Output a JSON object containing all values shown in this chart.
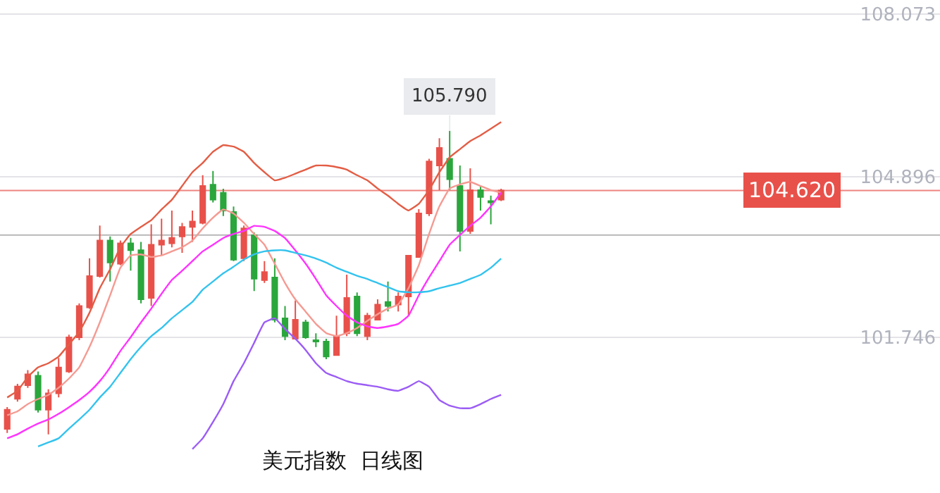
{
  "chart_data": {
    "type": "candlestick",
    "title": "美元指数  日线图",
    "categories": [
      null,
      null,
      null,
      null,
      null,
      null,
      null,
      null,
      null,
      null,
      null,
      null,
      null,
      null,
      null,
      null,
      null,
      null,
      null,
      null,
      null,
      null,
      null,
      null,
      null,
      null,
      null,
      null,
      null,
      null,
      null,
      null,
      null,
      null,
      null,
      null,
      null,
      null,
      null,
      null,
      null,
      null,
      null,
      null,
      null,
      null,
      null,
      null,
      null
    ],
    "ohlc": [
      [
        99.956,
        100.383,
        99.876,
        100.33
      ],
      [
        100.543,
        100.837,
        100.49,
        100.784
      ],
      [
        100.81,
        101.104,
        100.757,
        101.024
      ],
      [
        100.997,
        101.077,
        100.276,
        100.33
      ],
      [
        100.33,
        100.73,
        99.849,
        100.65
      ],
      [
        100.65,
        101.344,
        100.57,
        101.157
      ],
      [
        101.077,
        101.798,
        101.051,
        101.745
      ],
      [
        101.745,
        102.412,
        101.691,
        102.359
      ],
      [
        102.332,
        103.293,
        102.306,
        102.946
      ],
      [
        102.946,
        103.934,
        102.92,
        103.641
      ],
      [
        103.641,
        103.721,
        102.84,
        103.213
      ],
      [
        103.187,
        103.641,
        103.16,
        103.587
      ],
      [
        103.587,
        103.694,
        103.053,
        103.454
      ],
      [
        103.454,
        103.614,
        102.412,
        102.492
      ],
      [
        102.519,
        103.961,
        102.359,
        103.56
      ],
      [
        103.56,
        104.068,
        103.347,
        103.641
      ],
      [
        103.587,
        104.228,
        103.507,
        103.694
      ],
      [
        103.721,
        103.988,
        103.4,
        103.908
      ],
      [
        103.908,
        104.228,
        103.614,
        104.014
      ],
      [
        103.988,
        104.922,
        103.961,
        104.709
      ],
      [
        104.735,
        105.002,
        104.388,
        104.442
      ],
      [
        104.575,
        104.655,
        104.121,
        104.228
      ],
      [
        104.201,
        104.308,
        103.24,
        103.267
      ],
      [
        103.294,
        103.934,
        103.24,
        103.881
      ],
      [
        103.747,
        103.801,
        102.653,
        102.893
      ],
      [
        102.866,
        103.24,
        102.813,
        103.026
      ],
      [
        102.92,
        103.293,
        102.039,
        102.092
      ],
      [
        102.119,
        102.359,
        101.691,
        101.771
      ],
      [
        101.718,
        102.466,
        101.718,
        102.092
      ],
      [
        102.039,
        102.092,
        101.718,
        101.745
      ],
      [
        101.691,
        101.825,
        101.558,
        101.665
      ],
      [
        101.665,
        101.718,
        101.318,
        101.371
      ],
      [
        101.398,
        102.172,
        101.398,
        101.771
      ],
      [
        101.825,
        102.973,
        101.771,
        102.519
      ],
      [
        102.546,
        102.626,
        101.771,
        101.825
      ],
      [
        101.771,
        102.226,
        101.691,
        102.172
      ],
      [
        102.092,
        102.492,
        102.092,
        102.386
      ],
      [
        102.439,
        102.84,
        102.252,
        102.359
      ],
      [
        102.386,
        102.626,
        102.252,
        102.546
      ],
      [
        102.546,
        103.347,
        102.172,
        103.347
      ],
      [
        103.32,
        104.255,
        103.32,
        104.174
      ],
      [
        104.174,
        105.243,
        104.121,
        105.189
      ],
      [
        105.109,
        105.643,
        104.628,
        105.456
      ],
      [
        105.243,
        105.79,
        104.628,
        104.842
      ],
      [
        104.709,
        105.109,
        103.427,
        103.828
      ],
      [
        103.828,
        105.056,
        103.774,
        104.628
      ],
      [
        104.628,
        104.709,
        104.228,
        104.495
      ],
      [
        104.415,
        104.522,
        103.961,
        104.388
      ],
      [
        104.442,
        104.655,
        104.415,
        104.62
      ]
    ],
    "colors": [
      "#e8514a",
      "#e8514a",
      "#e8514a",
      "#2aa63c",
      "#e8514a",
      "#e8514a",
      "#e8514a",
      "#e8514a",
      "#e8514a",
      "#e8514a",
      "#2aa63c",
      "#e8514a",
      "#2aa63c",
      "#2aa63c",
      "#e8514a",
      "#e8514a",
      "#e8514a",
      "#e8514a",
      "#e8514a",
      "#e8514a",
      "#2aa63c",
      "#2aa63c",
      "#2aa63c",
      "#e8514a",
      "#2aa63c",
      "#e8514a",
      "#2aa63c",
      "#2aa63c",
      "#e8514a",
      "#2aa63c",
      "#2aa63c",
      "#2aa63c",
      "#e8514a",
      "#e8514a",
      "#2aa63c",
      "#e8514a",
      "#e8514a",
      "#2aa63c",
      "#e8514a",
      "#e8514a",
      "#e8514a",
      "#e8514a",
      "#e8514a",
      "#2aa63c",
      "#2aa63c",
      "#e8514a",
      "#2aa63c",
      "#2aa63c",
      "#e8514a"
    ],
    "series": [
      {
        "type": "line",
        "color": "#e35d45",
        "values": [
          100.57,
          100.7,
          100.97,
          101.16,
          101.24,
          101.37,
          101.61,
          101.85,
          102.23,
          102.71,
          103.08,
          103.51,
          103.77,
          103.91,
          104.04,
          104.25,
          104.44,
          104.71,
          104.98,
          105.16,
          105.38,
          105.51,
          105.48,
          105.38,
          105.16,
          104.98,
          104.82,
          104.87,
          104.95,
          105.03,
          105.11,
          105.11,
          105.08,
          105.03,
          104.92,
          104.82,
          104.66,
          104.52,
          104.36,
          104.23,
          104.36,
          104.63,
          104.98,
          105.27,
          105.43,
          105.59,
          105.7,
          105.83,
          105.96
        ]
      },
      {
        "type": "line",
        "color": "#f59a92",
        "values": [
          100.22,
          100.3,
          100.44,
          100.54,
          100.62,
          100.76,
          100.94,
          101.16,
          101.56,
          102.04,
          102.57,
          103.11,
          103.35,
          103.37,
          103.32,
          103.35,
          103.43,
          103.51,
          103.64,
          103.88,
          104.09,
          104.25,
          104.17,
          103.99,
          103.77,
          103.56,
          103.19,
          102.81,
          102.49,
          102.25,
          102.01,
          101.83,
          101.77,
          101.83,
          101.93,
          102.07,
          102.2,
          102.31,
          102.39,
          102.71,
          103.16,
          103.77,
          104.31,
          104.66,
          104.74,
          104.79,
          104.71,
          104.63,
          104.58
        ]
      },
      {
        "type": "line",
        "color": "#ff33ff",
        "values": [
          99.77,
          99.85,
          99.96,
          100.06,
          100.14,
          100.25,
          100.38,
          100.52,
          100.68,
          100.89,
          101.16,
          101.48,
          101.75,
          102.04,
          102.31,
          102.6,
          102.87,
          103.05,
          103.24,
          103.43,
          103.56,
          103.69,
          103.77,
          103.83,
          103.93,
          103.91,
          103.83,
          103.69,
          103.45,
          103.19,
          102.89,
          102.57,
          102.36,
          102.17,
          102.04,
          101.96,
          101.93,
          101.96,
          102.01,
          102.17,
          102.57,
          102.92,
          103.24,
          103.56,
          103.75,
          103.93,
          104.09,
          104.31,
          104.58
        ]
      },
      {
        "type": "line",
        "color": "#33c3ee",
        "values": [
          null,
          null,
          null,
          99.61,
          99.69,
          99.77,
          99.96,
          100.14,
          100.33,
          100.57,
          100.78,
          101.05,
          101.32,
          101.56,
          101.77,
          101.93,
          102.12,
          102.28,
          102.44,
          102.68,
          102.84,
          103.0,
          103.13,
          103.27,
          103.37,
          103.43,
          103.45,
          103.45,
          103.4,
          103.35,
          103.29,
          103.21,
          103.11,
          103.03,
          102.95,
          102.89,
          102.81,
          102.73,
          102.65,
          102.63,
          102.63,
          102.65,
          102.71,
          102.76,
          102.81,
          102.89,
          102.97,
          103.11,
          103.29
        ]
      },
      {
        "type": "line",
        "color": "#9b5cf6",
        "values": [
          null,
          null,
          null,
          null,
          null,
          null,
          null,
          null,
          null,
          null,
          null,
          null,
          null,
          null,
          null,
          null,
          null,
          null,
          99.56,
          99.77,
          100.09,
          100.44,
          100.89,
          101.24,
          101.64,
          102.04,
          102.12,
          101.91,
          101.72,
          101.5,
          101.24,
          101.05,
          100.97,
          100.89,
          100.84,
          100.81,
          100.78,
          100.73,
          100.7,
          100.78,
          100.89,
          100.78,
          100.52,
          100.41,
          100.36,
          100.36,
          100.44,
          100.54,
          100.62
        ]
      }
    ],
    "annotations": [
      {
        "text": "105.790",
        "y": 105.79
      }
    ],
    "ref_lines": [
      {
        "axis": "y",
        "value": 104.62,
        "label": "104.620",
        "color": "#e8514a"
      },
      {
        "axis": "y",
        "value": 103.75,
        "color": "#9a9a9a"
      }
    ],
    "ylim": [
      98.7,
      108.35
    ],
    "yticks": [
      108.073,
      104.896,
      101.746
    ],
    "grid": "y"
  }
}
